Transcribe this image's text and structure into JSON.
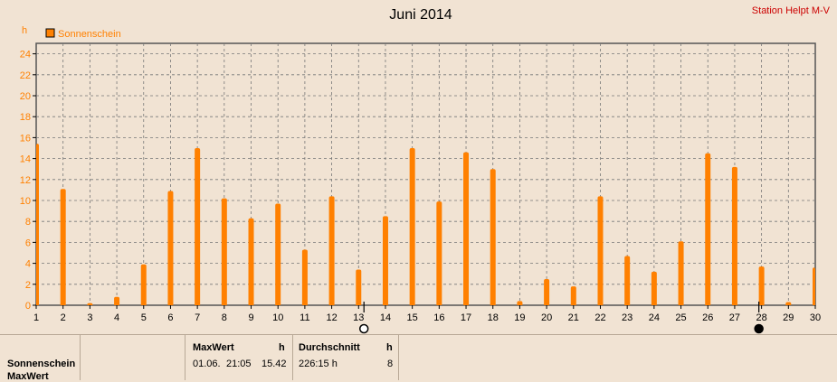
{
  "header": {
    "title": "Juni 2014",
    "station": "Station Helpt M-V"
  },
  "chart_data": {
    "type": "bar",
    "title": "Juni 2014",
    "ylabel": "h",
    "xlabel": "",
    "ylim": [
      0,
      25
    ],
    "yticks": [
      0,
      2,
      4,
      6,
      8,
      10,
      12,
      14,
      16,
      18,
      20,
      22,
      24
    ],
    "grid": true,
    "legend_position": "top-left",
    "series_color": "#ff8000",
    "categories": [
      "1",
      "2",
      "3",
      "4",
      "5",
      "6",
      "7",
      "8",
      "9",
      "10",
      "11",
      "12",
      "13",
      "14",
      "15",
      "16",
      "17",
      "18",
      "19",
      "20",
      "21",
      "22",
      "23",
      "24",
      "25",
      "26",
      "27",
      "28",
      "29",
      "30"
    ],
    "series": [
      {
        "name": "Sonnenschein",
        "values": [
          15.42,
          11.1,
          0.2,
          0.8,
          3.9,
          10.9,
          15.0,
          10.2,
          8.3,
          9.7,
          5.3,
          10.4,
          3.4,
          8.5,
          15.0,
          9.9,
          14.6,
          13.0,
          0.4,
          2.5,
          1.8,
          10.4,
          4.7,
          3.2,
          6.1,
          14.5,
          13.2,
          3.7,
          0.3,
          3.6
        ]
      }
    ],
    "markers": [
      {
        "type": "open-circle",
        "x": 13.2
      },
      {
        "type": "filled-circle",
        "x": 27.9
      }
    ]
  },
  "footer": {
    "row_label_1": "Sonnenschein",
    "row_label_2": "MaxWert",
    "max_header": "MaxWert",
    "max_unit": "h",
    "max_date": "01.06.",
    "max_time": "21:05",
    "max_value": "15.42",
    "avg_header": "Durchschnitt",
    "avg_unit": "h",
    "avg_value": "226:15 h",
    "avg_days": "8"
  }
}
